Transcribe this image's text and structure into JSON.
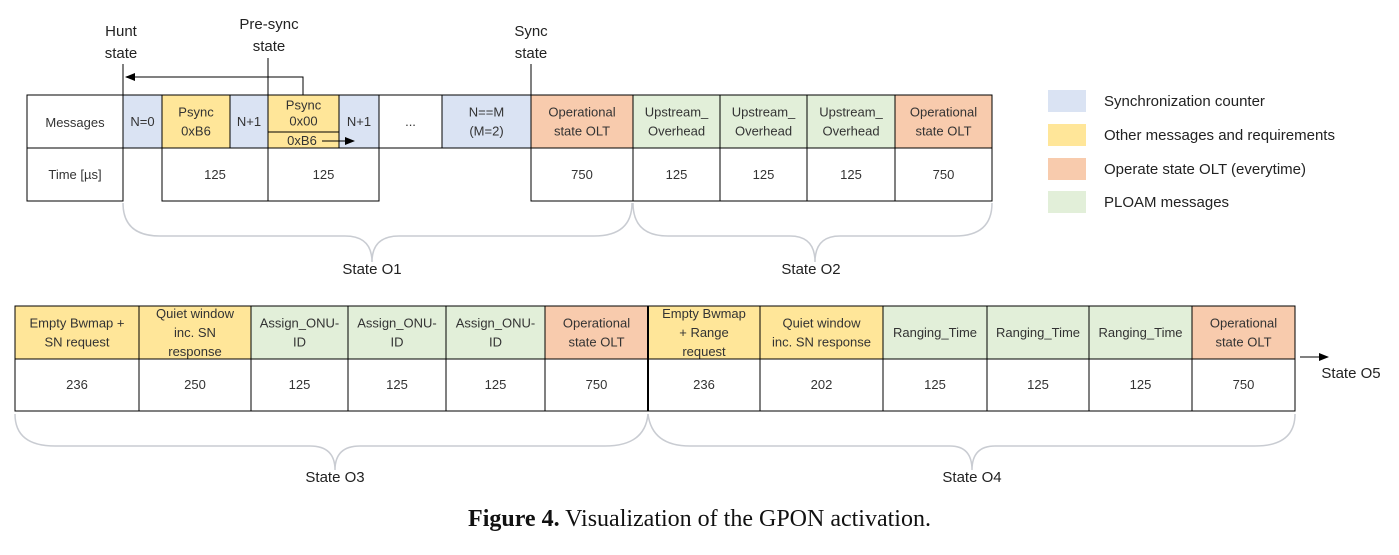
{
  "colors": {
    "sync": "#dae3f3",
    "other": "#ffe699",
    "olt": "#f8cbad",
    "ploam": "#e2efd9",
    "line": "#000000",
    "brace": "#c9ccd2"
  },
  "labels": {
    "hunt_state": [
      "Hunt",
      "state"
    ],
    "presync_state": [
      "Pre-sync",
      "state"
    ],
    "sync_state": [
      "Sync",
      "state"
    ],
    "state_o1": "State O1",
    "state_o2": "State O2",
    "state_o3": "State O3",
    "state_o4": "State O4",
    "state_o5": "State O5"
  },
  "row1": {
    "messages_header": "Messages",
    "time_header": "Time [µs]",
    "cells": [
      {
        "lines": [
          "N=0"
        ],
        "color": "sync"
      },
      {
        "lines": [
          "Psync",
          "0xB6"
        ],
        "color": "other"
      },
      {
        "lines": [
          "N+1"
        ],
        "color": "sync"
      },
      {
        "lines": [
          "Psync",
          "0x00"
        ],
        "color": "other"
      },
      {
        "lines": [
          "N+1"
        ],
        "color": "sync"
      },
      {
        "lines": [
          "..."
        ],
        "color": "none"
      },
      {
        "lines": [
          "N==M",
          "(M=2)"
        ],
        "color": "sync"
      },
      {
        "lines": [
          "Operational",
          "state OLT"
        ],
        "color": "olt"
      },
      {
        "lines": [
          "Upstream_",
          "Overhead"
        ],
        "color": "ploam"
      },
      {
        "lines": [
          "Upstream_",
          "Overhead"
        ],
        "color": "ploam"
      },
      {
        "lines": [
          "Upstream_",
          "Overhead"
        ],
        "color": "ploam"
      },
      {
        "lines": [
          "Operational",
          "state OLT"
        ],
        "color": "olt"
      }
    ],
    "sub_label": "0xB6",
    "times": [
      "125",
      "125",
      "750",
      "125",
      "125",
      "125",
      "750"
    ]
  },
  "row2": {
    "cells": [
      {
        "lines": [
          "Empty Bwmap +",
          "SN request"
        ],
        "color": "other"
      },
      {
        "lines": [
          "Quiet window",
          "inc. SN",
          "response"
        ],
        "color": "other"
      },
      {
        "lines": [
          "Assign_ONU-",
          "ID"
        ],
        "color": "ploam"
      },
      {
        "lines": [
          "Assign_ONU-",
          "ID"
        ],
        "color": "ploam"
      },
      {
        "lines": [
          "Assign_ONU-",
          "ID"
        ],
        "color": "ploam"
      },
      {
        "lines": [
          "Operational",
          "state OLT"
        ],
        "color": "olt"
      },
      {
        "lines": [
          "Empty Bwmap",
          "+ Range",
          "request"
        ],
        "color": "other"
      },
      {
        "lines": [
          "Quiet window",
          "inc. SN response"
        ],
        "color": "other"
      },
      {
        "lines": [
          "Ranging_Time"
        ],
        "color": "ploam"
      },
      {
        "lines": [
          "Ranging_Time"
        ],
        "color": "ploam"
      },
      {
        "lines": [
          "Ranging_Time"
        ],
        "color": "ploam"
      },
      {
        "lines": [
          "Operational",
          "state OLT"
        ],
        "color": "olt"
      }
    ],
    "times": [
      "236",
      "250",
      "125",
      "125",
      "125",
      "750",
      "236",
      "202",
      "125",
      "125",
      "125",
      "750"
    ]
  },
  "legend": [
    {
      "label": "Synchronization counter",
      "color": "sync"
    },
    {
      "label": "Other messages and requirements",
      "color": "other"
    },
    {
      "label": "Operate state OLT (everytime)",
      "color": "olt"
    },
    {
      "label": "PLOAM messages",
      "color": "ploam"
    }
  ],
  "caption": {
    "prefix": "Figure 4.",
    "text": " Visualization of the GPON activation."
  }
}
